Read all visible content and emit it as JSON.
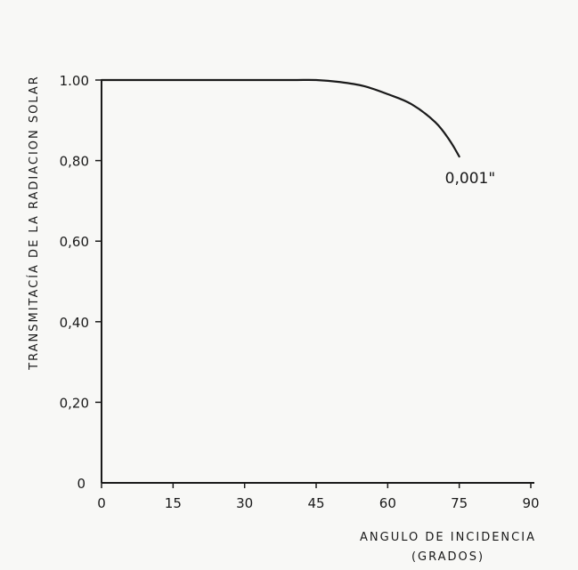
{
  "chart_data": {
    "type": "line",
    "title": "",
    "ylabel": "TRANSMITACÍA DE LA RADIACION SOLAR",
    "xlabel_line1": "ANGULO DE INCIDENCIA",
    "xlabel_line2": "(GRADOS)",
    "xlim": [
      0,
      90
    ],
    "ylim": [
      0,
      1.0
    ],
    "x_ticks": [
      0,
      15,
      30,
      45,
      60,
      75,
      90
    ],
    "x_tick_labels": [
      "0",
      "15",
      "30",
      "45",
      "60",
      "75",
      "90"
    ],
    "y_ticks": [
      0,
      0.2,
      0.4,
      0.6,
      0.8,
      1.0
    ],
    "y_tick_labels": [
      "0",
      "0,20",
      "0,40",
      "0,60",
      "0,80",
      "1.00"
    ],
    "grid": false,
    "series": [
      {
        "name": "0,001\"",
        "x": [
          0,
          10,
          20,
          30,
          40,
          45,
          50,
          55,
          60,
          65,
          70,
          73,
          75
        ],
        "y": [
          1.0,
          1.0,
          1.0,
          1.0,
          1.0,
          1.0,
          0.995,
          0.985,
          0.965,
          0.94,
          0.895,
          0.85,
          0.81
        ]
      }
    ],
    "annotations": [
      {
        "text": "0,001\"",
        "x": 75,
        "y": 0.74
      }
    ],
    "line_color": "#1a1a1a"
  }
}
